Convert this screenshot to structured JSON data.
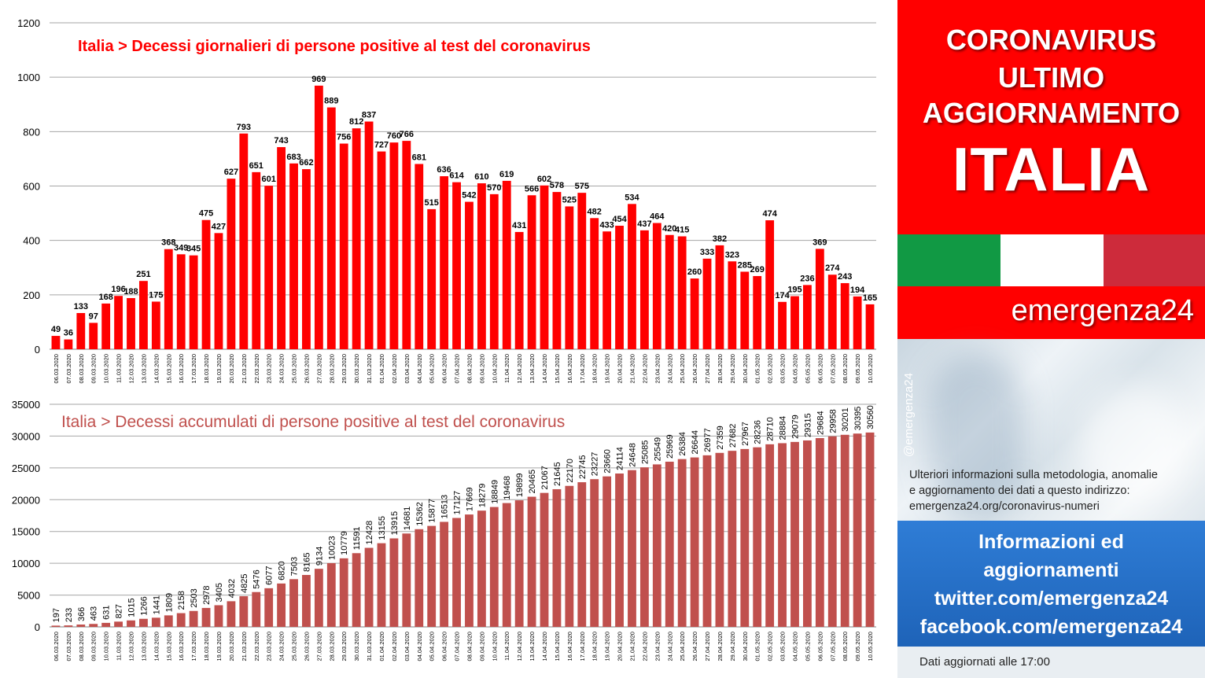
{
  "chart_data": [
    {
      "type": "bar",
      "title": "Italia > Decessi giornalieri di persone positive al test del coronavirus",
      "ylim": [
        0,
        1200
      ],
      "yticks": [
        0,
        200,
        400,
        600,
        800,
        1000,
        1200
      ],
      "grid": true,
      "categories": [
        "06.03.2020",
        "07.03.2020",
        "08.03.2020",
        "09.03.2020",
        "10.03.2020",
        "11.03.2020",
        "12.03.2020",
        "13.03.2020",
        "14.03.2020",
        "15.03.2020",
        "16.03.2020",
        "17.03.2020",
        "18.03.2020",
        "19.03.2020",
        "20.03.2020",
        "21.03.2020",
        "22.03.2020",
        "23.03.2020",
        "24.03.2020",
        "25.03.2020",
        "26.03.2020",
        "27.03.2020",
        "28.03.2020",
        "29.03.2020",
        "30.03.2020",
        "31.03.2020",
        "01.04.2020",
        "02.04.2020",
        "03.04.2020",
        "04.04.2020",
        "05.04.2020",
        "06.04.2020",
        "07.04.2020",
        "08.04.2020",
        "09.04.2020",
        "10.04.2020",
        "11.04.2020",
        "12.04.2020",
        "13.04.2020",
        "14.04.2020",
        "15.04.2020",
        "16.04.2020",
        "17.04.2020",
        "18.04.2020",
        "19.04.2020",
        "20.04.2020",
        "21.04.2020",
        "22.04.2020",
        "23.04.2020",
        "24.04.2020",
        "25.04.2020",
        "26.04.2020",
        "27.04.2020",
        "28.04.2020",
        "29.04.2020",
        "30.04.2020",
        "01.05.2020",
        "02.05.2020",
        "03.05.2020",
        "04.05.2020",
        "05.05.2020",
        "06.05.2020",
        "07.05.2020",
        "08.05.2020",
        "09.05.2020",
        "10.05.2020"
      ],
      "values": [
        49,
        36,
        133,
        97,
        168,
        196,
        188,
        251,
        175,
        368,
        349,
        345,
        475,
        427,
        627,
        793,
        651,
        601,
        743,
        683,
        662,
        969,
        889,
        756,
        812,
        837,
        727,
        760,
        766,
        681,
        515,
        636,
        614,
        542,
        610,
        570,
        619,
        431,
        566,
        602,
        578,
        525,
        575,
        482,
        433,
        454,
        534,
        437,
        464,
        420,
        415,
        260,
        333,
        382,
        323,
        285,
        269,
        474,
        174,
        195,
        236,
        369,
        274,
        243,
        194,
        165
      ],
      "color": "#ff0000"
    },
    {
      "type": "bar",
      "title": "Italia > Decessi accumulati di persone positive al test del coronavirus",
      "ylim": [
        0,
        35000
      ],
      "yticks": [
        0,
        5000,
        10000,
        15000,
        20000,
        25000,
        30000,
        35000
      ],
      "grid": true,
      "categories": [
        "06.03.2020",
        "07.03.2020",
        "08.03.2020",
        "09.03.2020",
        "10.03.2020",
        "11.03.2020",
        "12.03.2020",
        "13.03.2020",
        "14.03.2020",
        "15.03.2020",
        "16.03.2020",
        "17.03.2020",
        "18.03.2020",
        "19.03.2020",
        "20.03.2020",
        "21.03.2020",
        "22.03.2020",
        "23.03.2020",
        "24.03.2020",
        "25.03.2020",
        "26.03.2020",
        "27.03.2020",
        "28.03.2020",
        "29.03.2020",
        "30.03.2020",
        "31.03.2020",
        "01.04.2020",
        "02.04.2020",
        "03.04.2020",
        "04.04.2020",
        "05.04.2020",
        "06.04.2020",
        "07.04.2020",
        "08.04.2020",
        "09.04.2020",
        "10.04.2020",
        "11.04.2020",
        "12.04.2020",
        "13.04.2020",
        "14.04.2020",
        "15.04.2020",
        "16.04.2020",
        "17.04.2020",
        "18.04.2020",
        "19.04.2020",
        "20.04.2020",
        "21.04.2020",
        "22.04.2020",
        "23.04.2020",
        "24.04.2020",
        "25.04.2020",
        "26.04.2020",
        "27.04.2020",
        "28.04.2020",
        "29.04.2020",
        "30.04.2020",
        "01.05.2020",
        "02.05.2020",
        "03.05.2020",
        "04.05.2020",
        "05.05.2020",
        "06.05.2020",
        "07.05.2020",
        "08.05.2020",
        "09.05.2020",
        "10.05.2020"
      ],
      "values": [
        197,
        233,
        366,
        463,
        631,
        827,
        1015,
        1266,
        1441,
        1809,
        2158,
        2503,
        2978,
        3405,
        4032,
        4825,
        5476,
        6077,
        6820,
        7503,
        8165,
        9134,
        10023,
        10779,
        11591,
        12428,
        13155,
        13915,
        14681,
        15362,
        15877,
        16513,
        17127,
        17669,
        18279,
        18849,
        19468,
        19899,
        20465,
        21067,
        21645,
        22170,
        22745,
        23227,
        23660,
        24114,
        24648,
        25085,
        25549,
        25969,
        26384,
        26644,
        26977,
        27359,
        27682,
        27967,
        28236,
        28710,
        28884,
        29079,
        29315,
        29684,
        29958,
        30201,
        30395,
        30560
      ],
      "color": "#c0504d"
    }
  ],
  "panel": {
    "header_lines": [
      "CORONAVIRUS",
      "ULTIMO",
      "AGGIORNAMENTO"
    ],
    "country": "ITALIA",
    "brand": "emergenza24",
    "handle": "@emergenza24",
    "info_lines": [
      "Ulteriori informazioni sulla metodologia, anomalie",
      "e aggiornamento dei dati a questo indirizzo:",
      "emergenza24.org/coronavirus-numeri"
    ],
    "social_lines": [
      "Informazioni ed",
      "aggiornamenti",
      "twitter.com/emergenza24",
      "facebook.com/emergenza24"
    ],
    "footer": "Dati aggiornati alle 17:00",
    "colors": {
      "header_red": "#ff0000",
      "flag_green": "#119944",
      "flag_white": "#ffffff",
      "flag_red": "#cd2b3b",
      "social_blue": "#2f7dd6"
    }
  }
}
